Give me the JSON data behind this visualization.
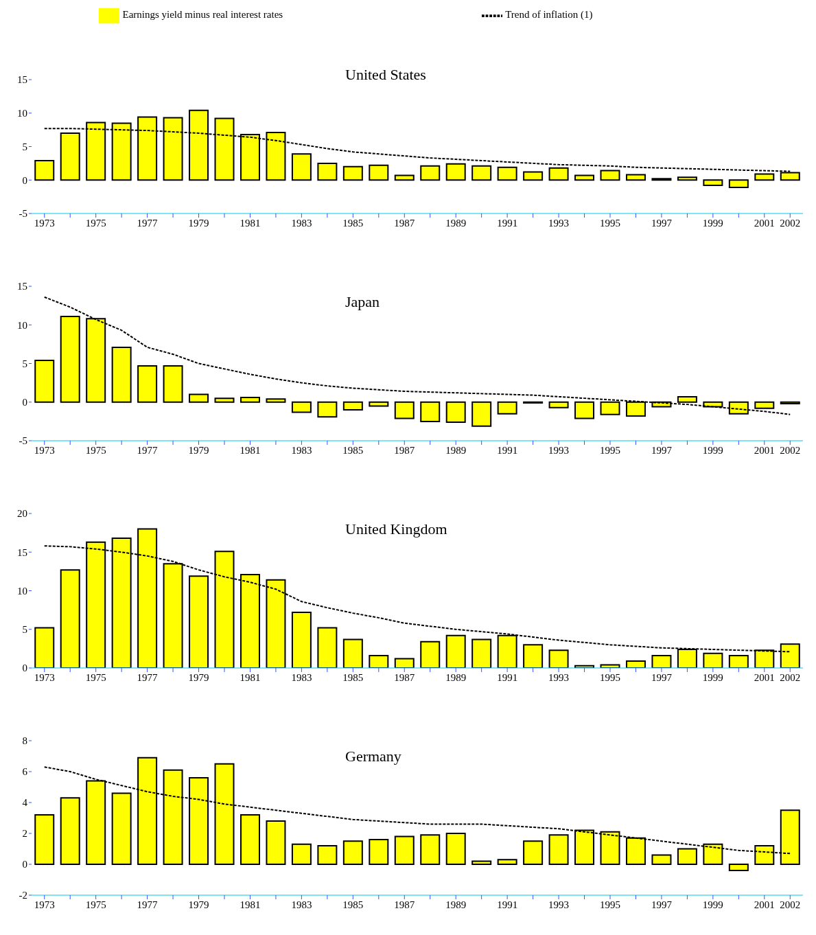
{
  "chart_data": [
    {
      "type": "bar",
      "title": "United States",
      "categories": [
        "1973",
        null,
        "1975",
        null,
        "1977",
        null,
        "1979",
        null,
        "1981",
        null,
        "1983",
        null,
        "1985",
        null,
        "1987",
        null,
        "1989",
        null,
        "1991",
        null,
        "1993",
        null,
        "1995",
        null,
        "1997",
        null,
        "1999",
        null,
        "2001",
        "2002"
      ],
      "ylim": [
        -5,
        15
      ],
      "yticks": [
        -5,
        0,
        5,
        10,
        15
      ],
      "grid": false,
      "legend": "top",
      "marker": "none",
      "series": [
        {
          "name": "Earnings yield minus real interest rates",
          "color": "#ffff00",
          "values": [
            2.9,
            7.0,
            8.6,
            8.5,
            9.4,
            9.3,
            10.4,
            9.2,
            6.8,
            7.1,
            3.9,
            2.5,
            2.0,
            2.2,
            0.7,
            2.1,
            2.4,
            2.1,
            1.9,
            1.2,
            1.8,
            0.7,
            1.4,
            0.8,
            0.2,
            0.4,
            -0.8,
            -1.1,
            0.9,
            1.1
          ]
        },
        {
          "name": "Trend of inflation (1)",
          "type": "line",
          "line_style": "dashed",
          "color": "#000000",
          "values": [
            7.7,
            7.7,
            7.6,
            7.5,
            7.4,
            7.2,
            7.0,
            6.7,
            6.4,
            5.9,
            5.3,
            4.7,
            4.2,
            3.9,
            3.6,
            3.3,
            3.1,
            2.9,
            2.7,
            2.5,
            2.3,
            2.2,
            2.1,
            1.9,
            1.8,
            1.7,
            1.6,
            1.5,
            1.4,
            1.3
          ]
        }
      ]
    },
    {
      "type": "bar",
      "title": "Japan",
      "categories": [
        "1973",
        null,
        "1975",
        null,
        "1977",
        null,
        "1979",
        null,
        "1981",
        null,
        "1983",
        null,
        "1985",
        null,
        "1987",
        null,
        "1989",
        null,
        "1991",
        null,
        "1993",
        null,
        "1995",
        null,
        "1997",
        null,
        "1999",
        null,
        "2001",
        "2002"
      ],
      "ylim": [
        -5,
        15
      ],
      "yticks": [
        -5,
        0,
        5,
        10,
        15
      ],
      "grid": false,
      "marker": "none",
      "series": [
        {
          "color": "#ffff00",
          "values": [
            5.4,
            11.1,
            10.8,
            7.1,
            4.7,
            4.7,
            1.0,
            0.5,
            0.6,
            0.4,
            -1.3,
            -1.9,
            -1.0,
            -0.5,
            -2.1,
            -2.5,
            -2.6,
            -3.1,
            -1.5,
            -0.1,
            -0.7,
            -2.1,
            -1.6,
            -1.8,
            -0.6,
            0.7,
            -0.6,
            -1.5,
            -0.8,
            -0.2
          ]
        },
        {
          "type": "line",
          "line_style": "dashed",
          "color": "#000000",
          "values": [
            13.6,
            12.3,
            10.7,
            9.3,
            7.1,
            6.2,
            5.0,
            4.3,
            3.6,
            3.0,
            2.5,
            2.1,
            1.8,
            1.6,
            1.4,
            1.3,
            1.2,
            1.1,
            1.0,
            0.9,
            0.7,
            0.5,
            0.3,
            0.1,
            -0.1,
            -0.3,
            -0.6,
            -0.9,
            -1.2,
            -1.6
          ]
        }
      ]
    },
    {
      "type": "bar",
      "title": "United Kingdom",
      "categories": [
        "1973",
        null,
        "1975",
        null,
        "1977",
        null,
        "1979",
        null,
        "1981",
        null,
        "1983",
        null,
        "1985",
        null,
        "1987",
        null,
        "1989",
        null,
        "1991",
        null,
        "1993",
        null,
        "1995",
        null,
        "1997",
        null,
        "1999",
        null,
        "2001",
        "2002"
      ],
      "ylim": [
        0,
        20
      ],
      "yticks": [
        0,
        5,
        10,
        15,
        20
      ],
      "grid": false,
      "marker": "none",
      "series": [
        {
          "color": "#ffff00",
          "values": [
            5.2,
            12.7,
            16.3,
            16.8,
            18.0,
            13.5,
            11.9,
            15.1,
            12.1,
            11.4,
            7.2,
            5.2,
            3.7,
            1.6,
            1.2,
            3.4,
            4.2,
            3.7,
            4.2,
            3.0,
            2.3,
            0.3,
            0.4,
            0.9,
            1.6,
            2.4,
            1.9,
            1.6,
            2.3,
            3.1
          ]
        },
        {
          "type": "line",
          "line_style": "dashed",
          "color": "#000000",
          "values": [
            15.8,
            15.7,
            15.4,
            15.0,
            14.5,
            13.8,
            12.7,
            11.8,
            11.1,
            10.2,
            8.6,
            7.8,
            7.1,
            6.5,
            5.8,
            5.4,
            5.0,
            4.7,
            4.4,
            4.0,
            3.6,
            3.3,
            3.0,
            2.8,
            2.6,
            2.5,
            2.4,
            2.3,
            2.2,
            2.1
          ]
        }
      ]
    },
    {
      "type": "bar",
      "title": "Germany",
      "categories": [
        "1973",
        null,
        "1975",
        null,
        "1977",
        null,
        "1979",
        null,
        "1981",
        null,
        "1983",
        null,
        "1985",
        null,
        "1987",
        null,
        "1989",
        null,
        "1991",
        null,
        "1993",
        null,
        "1995",
        null,
        "1997",
        null,
        "1999",
        null,
        "2001",
        "2002"
      ],
      "ylim": [
        -2,
        8
      ],
      "yticks": [
        -2,
        0,
        2,
        4,
        6,
        8
      ],
      "grid": false,
      "marker": "none",
      "series": [
        {
          "color": "#ffff00",
          "values": [
            3.2,
            4.3,
            5.4,
            4.6,
            6.9,
            6.1,
            5.6,
            6.5,
            3.2,
            2.8,
            1.3,
            1.2,
            1.5,
            1.6,
            1.8,
            1.9,
            2.0,
            0.2,
            0.3,
            1.5,
            1.9,
            2.2,
            2.1,
            1.7,
            0.6,
            1.0,
            1.3,
            -0.4,
            1.2,
            3.5
          ]
        },
        {
          "type": "line",
          "line_style": "dashed",
          "color": "#000000",
          "values": [
            6.3,
            6.0,
            5.5,
            5.1,
            4.7,
            4.4,
            4.2,
            3.9,
            3.7,
            3.5,
            3.3,
            3.1,
            2.9,
            2.8,
            2.7,
            2.6,
            2.6,
            2.6,
            2.5,
            2.4,
            2.3,
            2.1,
            1.9,
            1.7,
            1.5,
            1.3,
            1.1,
            0.9,
            0.8,
            0.7
          ]
        }
      ]
    }
  ]
}
